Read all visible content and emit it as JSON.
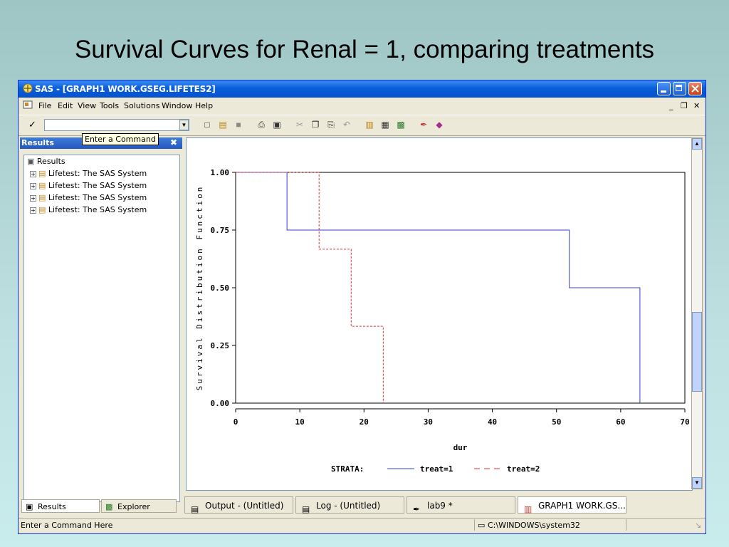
{
  "slide": {
    "title": "Survival Curves for Renal = 1, comparing treatments"
  },
  "window": {
    "title": "SAS - [GRAPH1  WORK.GSEG.LIFETES2]",
    "menu": [
      "File",
      "Edit",
      "View",
      "Tools",
      "Solutions",
      "Window",
      "Help"
    ],
    "command_value": "",
    "tooltip": "Enter a Command"
  },
  "results": {
    "header": "Results",
    "root": "Results",
    "items": [
      "Lifetest:  The SAS System",
      "Lifetest:  The SAS System",
      "Lifetest:  The SAS System",
      "Lifetest:  The SAS System"
    ],
    "tab_results": "Results",
    "tab_explorer": "Explorer"
  },
  "taskbar": {
    "tabs": [
      "Output - (Untitled)",
      "Log - (Untitled)",
      "lab9 *",
      "GRAPH1  WORK.GS..."
    ]
  },
  "status": {
    "left": "Enter a Command Here",
    "path": "C:\\WINDOWS\\system32"
  },
  "colors": {
    "treat1": "#3040d0",
    "treat2": "#e03030",
    "titlebar": "#0a5fd8"
  },
  "chart_data": {
    "type": "line",
    "step": true,
    "ylabel": "Survival Distribution Function",
    "xlabel": "dur",
    "xlim": [
      0,
      70
    ],
    "ylim": [
      0,
      1
    ],
    "x_ticks": [
      0,
      10,
      20,
      30,
      40,
      50,
      60,
      70
    ],
    "y_ticks": [
      "0.00",
      "0.25",
      "0.50",
      "0.75",
      "1.00"
    ],
    "legend_title": "STRATA:",
    "series": [
      {
        "name": "treat=1",
        "style": "solid",
        "x": [
          0,
          8,
          8,
          52,
          52,
          63,
          63
        ],
        "y": [
          1,
          1,
          0.75,
          0.75,
          0.5,
          0.5,
          0
        ]
      },
      {
        "name": "treat=2",
        "style": "dashed",
        "x": [
          0,
          13,
          13,
          18,
          18,
          23,
          23
        ],
        "y": [
          1,
          1,
          0.667,
          0.667,
          0.333,
          0.333,
          0
        ]
      }
    ]
  }
}
